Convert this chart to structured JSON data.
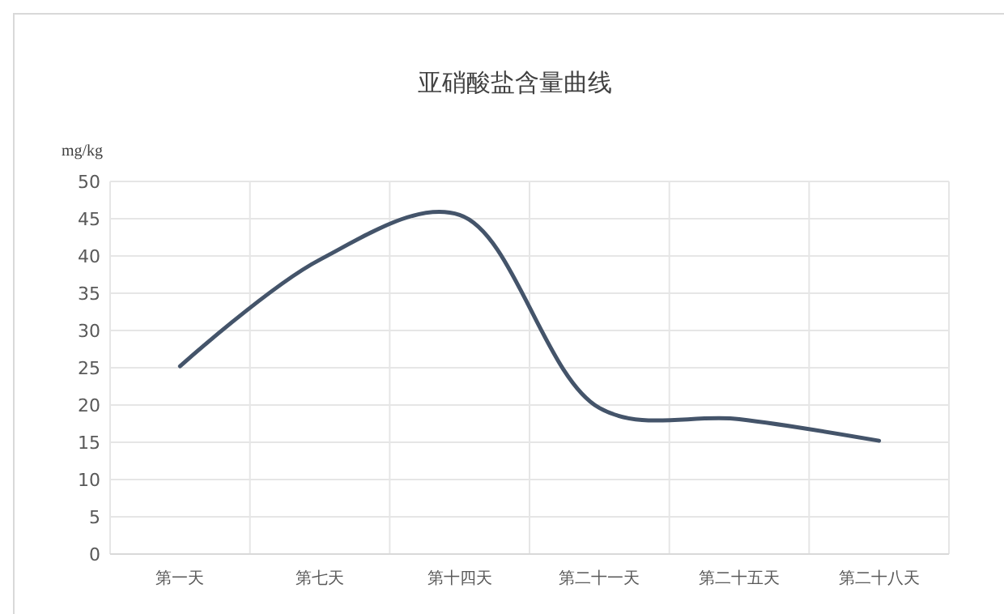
{
  "chart_data": {
    "type": "line",
    "title": "亚硝酸盐含量曲线",
    "ylabel": "mg/kg",
    "categories": [
      "第一天",
      "第七天",
      "第十四天",
      "第二十一天",
      "第二十五天",
      "第二十八天"
    ],
    "series": [
      {
        "color": "#44546a",
        "values": [
          25.2,
          39.5,
          45.5,
          19.6,
          18.1,
          15.2
        ]
      }
    ],
    "ylim": [
      0,
      50
    ],
    "yticks": [
      0,
      5,
      10,
      15,
      20,
      25,
      30,
      35,
      40,
      45,
      50
    ],
    "grid": true,
    "marker": "none",
    "line_style": "solid"
  }
}
